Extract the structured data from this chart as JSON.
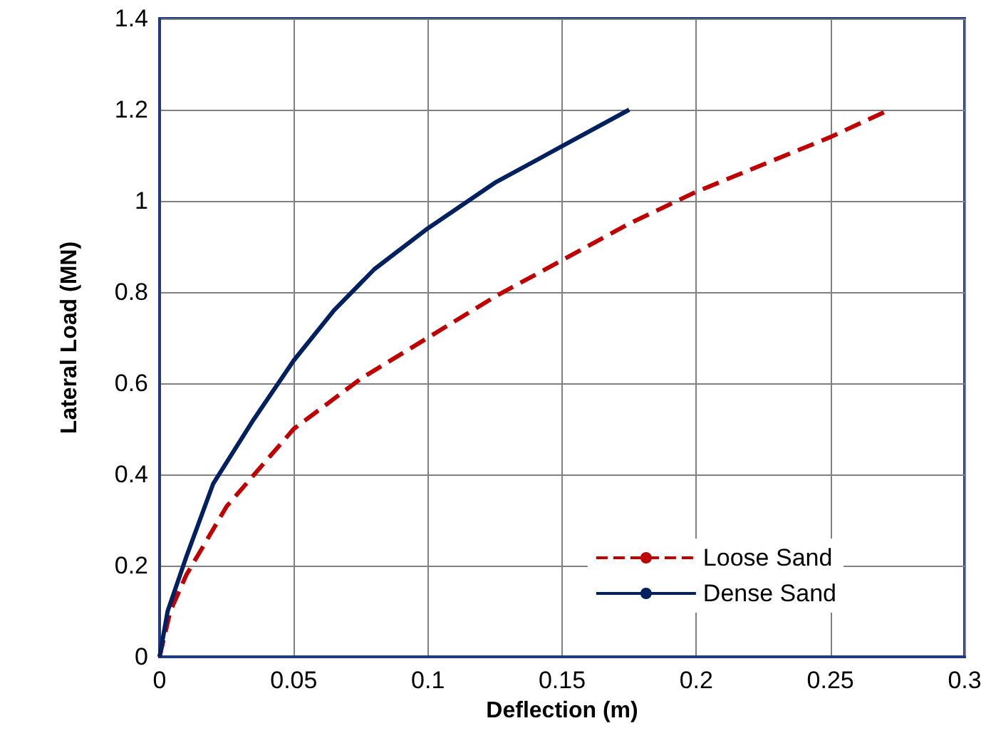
{
  "chart_data": {
    "type": "line",
    "xlabel": "Deflection (m)",
    "ylabel": "Lateral Load (MN)",
    "xlim": [
      0,
      0.3
    ],
    "xticks": [
      0,
      0.05,
      0.1,
      0.15,
      0.2,
      0.25,
      0.3
    ],
    "ylim": [
      0,
      1.4
    ],
    "yticks": [
      0,
      0.2,
      0.4,
      0.6,
      0.8,
      1,
      1.2,
      1.4
    ],
    "grid": true,
    "legend": "bottom right",
    "marker": "none",
    "series": [
      {
        "name": "Loose Sand",
        "color": "#c00000",
        "line_style": "dashed",
        "x": [
          0,
          0.004,
          0.01,
          0.025,
          0.05,
          0.075,
          0.1,
          0.125,
          0.15,
          0.175,
          0.2,
          0.225,
          0.25,
          0.272
        ],
        "values": [
          0,
          0.1,
          0.18,
          0.33,
          0.5,
          0.61,
          0.7,
          0.79,
          0.87,
          0.95,
          1.02,
          1.08,
          1.14,
          1.2
        ]
      },
      {
        "name": "Dense Sand",
        "color": "#002060",
        "line_style": "solid",
        "x": [
          0,
          0.003,
          0.01,
          0.02,
          0.035,
          0.05,
          0.065,
          0.08,
          0.1,
          0.125,
          0.15,
          0.175
        ],
        "values": [
          0,
          0.1,
          0.22,
          0.38,
          0.52,
          0.65,
          0.76,
          0.85,
          0.94,
          1.04,
          1.12,
          1.2
        ]
      }
    ]
  }
}
